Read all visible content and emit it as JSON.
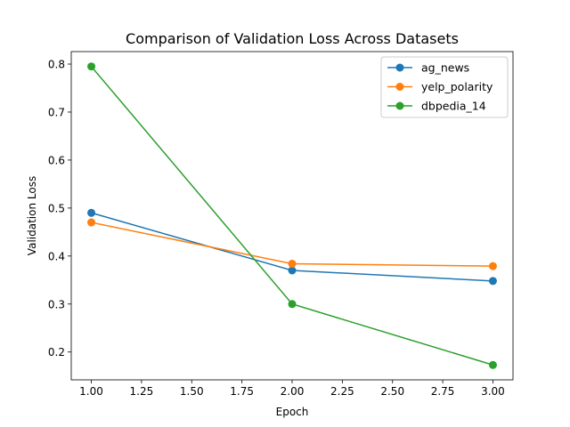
{
  "chart_data": {
    "type": "line",
    "title": "Comparison of Validation Loss Across Datasets",
    "xlabel": "Epoch",
    "ylabel": "Validation Loss",
    "x": [
      1.0,
      2.0,
      3.0
    ],
    "xlim": [
      0.9,
      3.1
    ],
    "ylim": [
      0.142,
      0.826
    ],
    "xticks": [
      1.0,
      1.25,
      1.5,
      1.75,
      2.0,
      2.25,
      2.5,
      2.75,
      3.0
    ],
    "xtick_labels": [
      "1.00",
      "1.25",
      "1.50",
      "1.75",
      "2.00",
      "2.25",
      "2.50",
      "2.75",
      "3.00"
    ],
    "yticks": [
      0.2,
      0.3,
      0.4,
      0.5,
      0.6,
      0.7,
      0.8
    ],
    "ytick_labels": [
      "0.2",
      "0.3",
      "0.4",
      "0.5",
      "0.6",
      "0.7",
      "0.8"
    ],
    "grid": false,
    "legend_position": "top-right",
    "marker": "circle",
    "series": [
      {
        "name": "ag_news",
        "color": "#1f77b4",
        "values": [
          0.49,
          0.37,
          0.348
        ]
      },
      {
        "name": "yelp_polarity",
        "color": "#ff7f0e",
        "values": [
          0.47,
          0.384,
          0.379
        ]
      },
      {
        "name": "dbpedia_14",
        "color": "#2ca02c",
        "values": [
          0.795,
          0.3,
          0.173
        ]
      }
    ]
  }
}
